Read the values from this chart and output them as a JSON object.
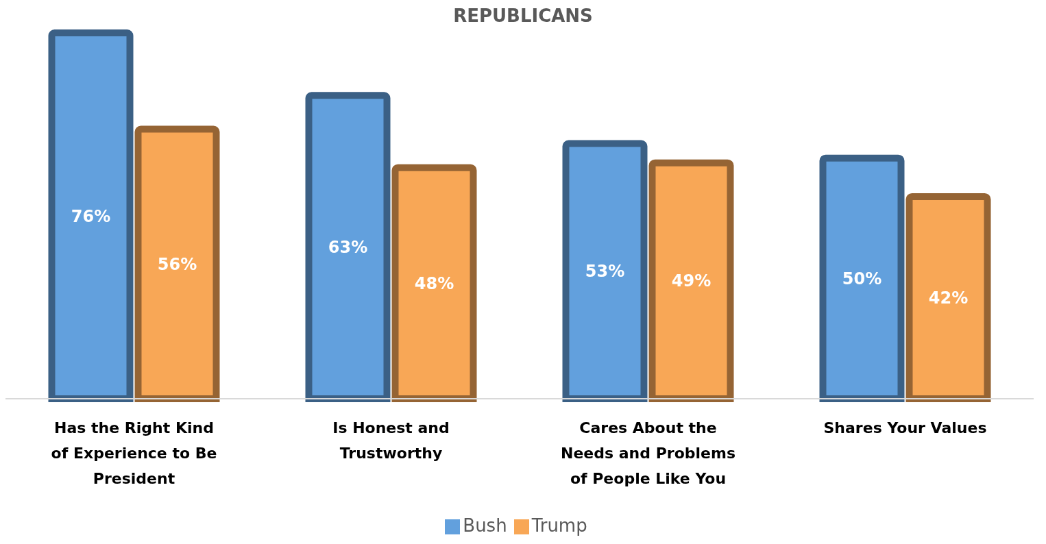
{
  "chart_data": {
    "type": "bar",
    "title": "REPUBLICANS",
    "categories": [
      "Has the Right Kind of Experience to Be President",
      "Is Honest and Trustworthy",
      "Cares About the Needs and Problems of People Like You",
      "Shares Your Values"
    ],
    "series": [
      {
        "name": "Bush",
        "color": "#62a0dd",
        "values": [
          76,
          63,
          53,
          50
        ],
        "value_labels": [
          "76%",
          "63%",
          "53%",
          "50%"
        ]
      },
      {
        "name": "Trump",
        "color": "#f8a756",
        "values": [
          56,
          48,
          49,
          42
        ],
        "value_labels": [
          "56%",
          "48%",
          "49%",
          "42%"
        ]
      }
    ],
    "legend": "bottom"
  }
}
